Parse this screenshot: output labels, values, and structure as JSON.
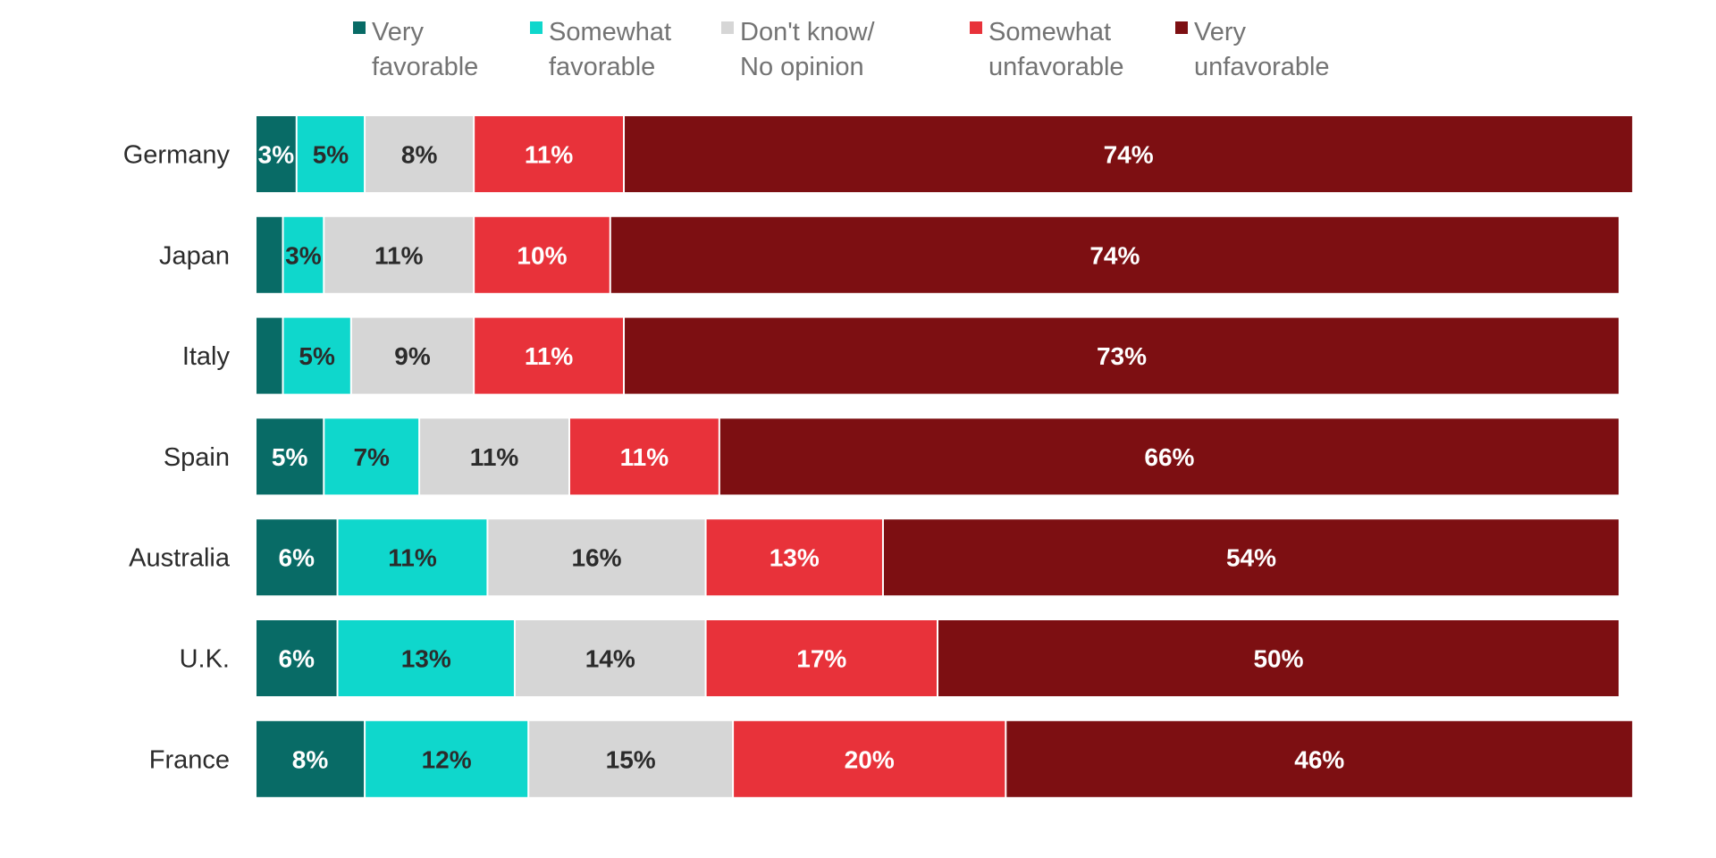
{
  "chart_data": {
    "type": "bar",
    "orientation": "horizontal",
    "stacked": true,
    "title": "",
    "xlabel": "",
    "ylabel": "",
    "xlim": [
      0,
      100
    ],
    "grid": false,
    "legend_position": "top",
    "categories": [
      "Germany",
      "Japan",
      "Italy",
      "Spain",
      "Australia",
      "U.K.",
      "France"
    ],
    "series": [
      {
        "name": "Very favorable",
        "legend_lines": [
          "Very",
          "favorable"
        ],
        "color": "#086b66",
        "label_color": "#ffffff",
        "values": [
          3,
          2,
          2,
          5,
          6,
          6,
          8
        ],
        "labels": [
          "3%",
          "",
          "",
          "5%",
          "6%",
          "6%",
          "8%"
        ]
      },
      {
        "name": "Somewhat favorable",
        "legend_lines": [
          "Somewhat",
          "favorable"
        ],
        "color": "#0fd7cc",
        "label_color": "#2b2b2b",
        "values": [
          5,
          3,
          5,
          7,
          11,
          13,
          12
        ],
        "labels": [
          "5%",
          "3%",
          "5%",
          "7%",
          "11%",
          "13%",
          "12%"
        ]
      },
      {
        "name": "Don't know/No opinion",
        "legend_lines": [
          "Don't know/",
          "No opinion"
        ],
        "color": "#d6d6d6",
        "label_color": "#2b2b2b",
        "values": [
          8,
          11,
          9,
          11,
          16,
          14,
          15
        ],
        "labels": [
          "8%",
          "11%",
          "9%",
          "11%",
          "16%",
          "14%",
          "15%"
        ]
      },
      {
        "name": "Somewhat unfavorable",
        "legend_lines": [
          "Somewhat",
          "unfavorable"
        ],
        "color": "#e8323a",
        "label_color": "#ffffff",
        "values": [
          11,
          10,
          11,
          11,
          13,
          17,
          20
        ],
        "labels": [
          "11%",
          "10%",
          "11%",
          "11%",
          "13%",
          "17%",
          "20%"
        ]
      },
      {
        "name": "Very unfavorable",
        "legend_lines": [
          "Very",
          "unfavorable"
        ],
        "color": "#7d0f12",
        "label_color": "#ffffff",
        "values": [
          74,
          74,
          73,
          66,
          54,
          50,
          46
        ],
        "labels": [
          "74%",
          "74%",
          "73%",
          "66%",
          "54%",
          "50%",
          "46%"
        ]
      }
    ]
  }
}
